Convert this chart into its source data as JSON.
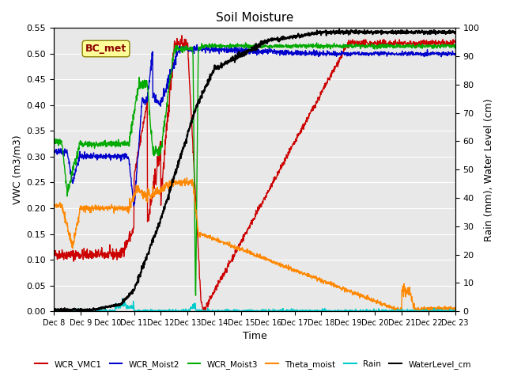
{
  "title": "Soil Moisture",
  "xlabel": "Time",
  "ylabel_left": "VWC (m3/m3)",
  "ylabel_right": "Rain (mm), Water Level (cm)",
  "xlim": [
    0,
    15
  ],
  "ylim_left": [
    0,
    0.55
  ],
  "ylim_right": [
    0,
    100
  ],
  "yticks_left": [
    0.0,
    0.05,
    0.1,
    0.15,
    0.2,
    0.25,
    0.3,
    0.35,
    0.4,
    0.45,
    0.5,
    0.55
  ],
  "yticks_right": [
    0,
    10,
    20,
    30,
    40,
    50,
    60,
    70,
    80,
    90,
    100
  ],
  "xtick_labels": [
    "Dec 8",
    "Dec 9",
    "Dec 10",
    "Dec 11",
    "Dec 12",
    "Dec 13",
    "Dec 14",
    "Dec 15",
    "Dec 16",
    "Dec 17",
    "Dec 18",
    "Dec 19",
    "Dec 20",
    "Dec 21",
    "Dec 22",
    "Dec 23"
  ],
  "background_color": "#e8e8e8",
  "legend_label": "BC_met",
  "series_colors": {
    "WCR_VMC1": "#cc0000",
    "WCR_Moist2": "#0000cc",
    "WCR_Moist3": "#00aa00",
    "Theta_moist": "#ff8800",
    "Rain": "#00cccc",
    "WaterLevel_cm": "#000000"
  }
}
